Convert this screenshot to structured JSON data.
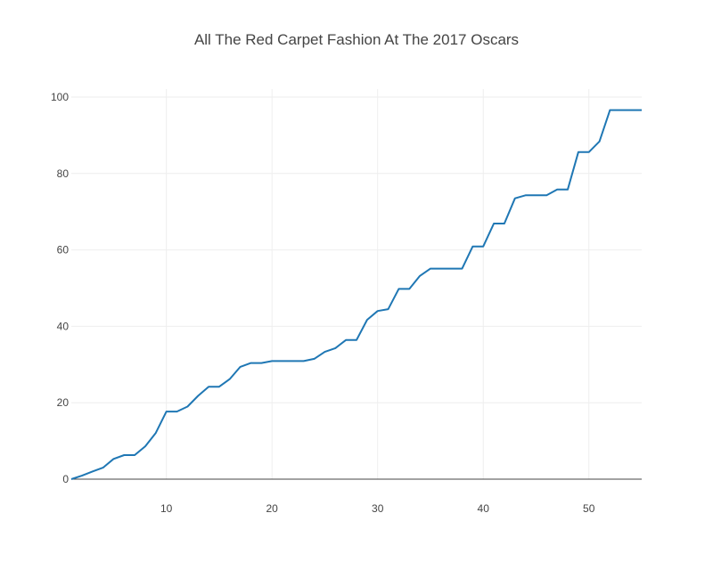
{
  "chart_data": {
    "type": "line",
    "title": "All The Red Carpet Fashion At The 2017 Oscars",
    "xlabel": "",
    "ylabel": "",
    "xlim": [
      1,
      55
    ],
    "ylim": [
      0,
      100
    ],
    "xticks": [
      10,
      20,
      30,
      40,
      50
    ],
    "yticks": [
      0,
      20,
      40,
      60,
      80,
      100
    ],
    "grid": true,
    "colors": {
      "line": "#1f77b4",
      "grid": "#eeeeee",
      "zeroline": "#444444",
      "text": "#444444"
    },
    "series": [
      {
        "x": [
          1,
          2,
          3,
          4,
          5,
          6,
          7,
          8,
          9,
          10,
          11,
          12,
          13,
          14,
          15,
          16,
          17,
          18,
          19,
          20,
          21,
          22,
          23,
          24,
          25,
          26,
          27,
          28,
          29,
          30,
          31,
          32,
          33,
          34,
          35,
          36,
          37,
          38,
          39,
          40,
          41,
          42,
          43,
          44,
          45,
          46,
          47,
          48,
          49,
          50,
          51,
          52,
          53,
          54,
          55
        ],
        "values": [
          0,
          0.9,
          2.0,
          3.0,
          5.3,
          6.3,
          6.3,
          8.6,
          12.1,
          17.7,
          17.7,
          19.0,
          21.8,
          24.2,
          24.2,
          26.2,
          29.4,
          30.4,
          30.4,
          30.9,
          30.9,
          30.9,
          30.9,
          31.5,
          33.3,
          34.3,
          36.4,
          36.4,
          41.7,
          44.0,
          44.5,
          49.8,
          49.8,
          53.2,
          55.1,
          55.1,
          55.1,
          55.1,
          60.9,
          60.9,
          66.9,
          66.9,
          73.5,
          74.3,
          74.3,
          74.3,
          75.8,
          75.8,
          85.6,
          85.6,
          88.4,
          96.6,
          96.6,
          96.6,
          96.6
        ]
      }
    ]
  }
}
